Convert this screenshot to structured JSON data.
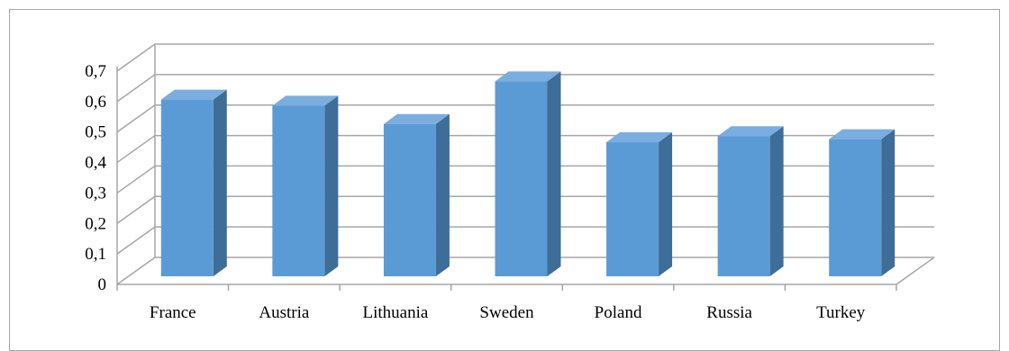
{
  "chart_data": {
    "type": "bar",
    "style": "3d-column",
    "categories": [
      "France",
      "Austria",
      "Lithuania",
      "Sweden",
      "Poland",
      "Russia",
      "Turkey"
    ],
    "values": [
      0.58,
      0.56,
      0.5,
      0.64,
      0.44,
      0.46,
      0.45
    ],
    "ylim": [
      0,
      0.7
    ],
    "y_ticks": [
      "0",
      "0,1",
      "0,2",
      "0,3",
      "0,4",
      "0,5",
      "0,6",
      "0,7"
    ],
    "grid": true,
    "legend": "none",
    "title": "",
    "xlabel": "",
    "ylabel": "",
    "colors": {
      "bar_front": "#5b9bd5",
      "bar_side": "#3e6d97",
      "bar_top": "#7aaee0",
      "grid": "#a6a6a6"
    }
  }
}
